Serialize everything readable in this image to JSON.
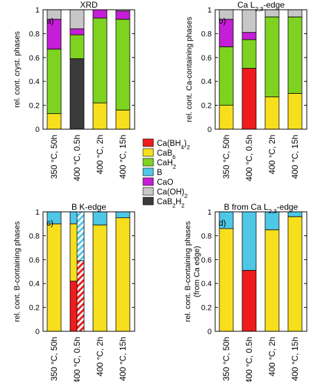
{
  "colors": {
    "CaBH4_2": "#ee1c1c",
    "CaB6": "#f7df1e",
    "CaH2": "#7ed321",
    "B": "#4fc8e8",
    "CaO": "#c41fd6",
    "CaOH2": "#c7c7c7",
    "CaB2H2": "#3b3b3b"
  },
  "legend": [
    {
      "key": "CaBH4_2",
      "label": "Ca(BH4)2"
    },
    {
      "key": "CaB6",
      "label": "CaB6"
    },
    {
      "key": "CaH2",
      "label": "CaH2"
    },
    {
      "key": "B",
      "label": "B"
    },
    {
      "key": "CaO",
      "label": "CaO"
    },
    {
      "key": "CaOH2",
      "label": "Ca(OH)2"
    },
    {
      "key": "CaB2H2",
      "label": "CaB2H2"
    }
  ],
  "y_ticks": [
    "0",
    "0.2",
    "0.4",
    "0.6",
    "0.8",
    "1"
  ],
  "chart_data": [
    {
      "type": "bar",
      "stacked": true,
      "panel_label": "a)",
      "title": "XRD",
      "ylabel": "rel. cont. cryst. phases",
      "ylim": [
        0,
        1
      ],
      "categories": [
        "350 °C, 50h",
        "400 °C, 0.5h",
        "400 °C, 2h",
        "400 °C, 15h"
      ],
      "series": [
        {
          "key": "CaB6",
          "values": [
            0.13,
            0.0,
            0.22,
            0.16
          ]
        },
        {
          "key": "CaB2H2",
          "values": [
            0.0,
            0.59,
            0.0,
            0.0
          ]
        },
        {
          "key": "CaH2",
          "values": [
            0.54,
            0.2,
            0.71,
            0.76
          ]
        },
        {
          "key": "CaO",
          "values": [
            0.25,
            0.05,
            0.07,
            0.07
          ]
        },
        {
          "key": "CaOH2",
          "values": [
            0.08,
            0.16,
            0.0,
            0.01
          ]
        }
      ]
    },
    {
      "type": "bar",
      "stacked": true,
      "panel_label": "b)",
      "title": "Ca L2,3-edge",
      "ylabel": "rel. cont. Ca-containing phases",
      "ylim": [
        0,
        1
      ],
      "categories": [
        "350 °C, 50h",
        "400 °C, 0.5h",
        "400 °C, 2h",
        "400 °C, 15h"
      ],
      "series": [
        {
          "key": "CaBH4_2",
          "values": [
            0.0,
            0.51,
            0.0,
            0.0
          ]
        },
        {
          "key": "CaB6",
          "values": [
            0.2,
            0.0,
            0.27,
            0.3
          ]
        },
        {
          "key": "CaH2",
          "values": [
            0.49,
            0.24,
            0.67,
            0.64
          ]
        },
        {
          "key": "CaO",
          "values": [
            0.23,
            0.06,
            0.0,
            0.0
          ]
        },
        {
          "key": "CaOH2",
          "values": [
            0.08,
            0.19,
            0.06,
            0.06
          ]
        }
      ]
    },
    {
      "type": "bar",
      "stacked": true,
      "panel_label": "c)",
      "title": "B K-edge",
      "ylabel": "rel. cont. B-containing phases",
      "ylim": [
        0,
        1
      ],
      "categories": [
        "350 °C, 50h",
        "400 °C, 0.5h",
        "400 °C, 2h",
        "400 °C, 15h"
      ],
      "series": [
        {
          "key": "CaBH4_2",
          "values": [
            0.0,
            0.42,
            0.0,
            0.0
          ]
        },
        {
          "key": "CaB6",
          "values": [
            0.9,
            0.48,
            0.89,
            0.95
          ]
        },
        {
          "key": "B",
          "values": [
            0.1,
            0.1,
            0.11,
            0.05
          ]
        }
      ],
      "hatched_overlay": {
        "category_index": 1,
        "series": [
          {
            "key": "CaBH4_2",
            "values": [
              0.59
            ]
          },
          {
            "key": "B",
            "values": [
              0.41
            ]
          }
        ]
      }
    },
    {
      "type": "bar",
      "stacked": true,
      "panel_label": "d)",
      "title": "B from Ca L2,3-edge",
      "ylabel": "rel. cont. B-containing phases (from Ca edge)",
      "ylim": [
        0,
        1
      ],
      "categories": [
        "350 °C, 50h",
        "400 °C, 0.5h",
        "400 °C, 2h",
        "400 °C, 15h"
      ],
      "series": [
        {
          "key": "CaBH4_2",
          "values": [
            0.0,
            0.51,
            0.0,
            0.0
          ]
        },
        {
          "key": "CaB6",
          "values": [
            0.86,
            0.0,
            0.85,
            0.96
          ]
        },
        {
          "key": "B",
          "values": [
            0.14,
            0.49,
            0.15,
            0.04
          ]
        }
      ]
    }
  ]
}
